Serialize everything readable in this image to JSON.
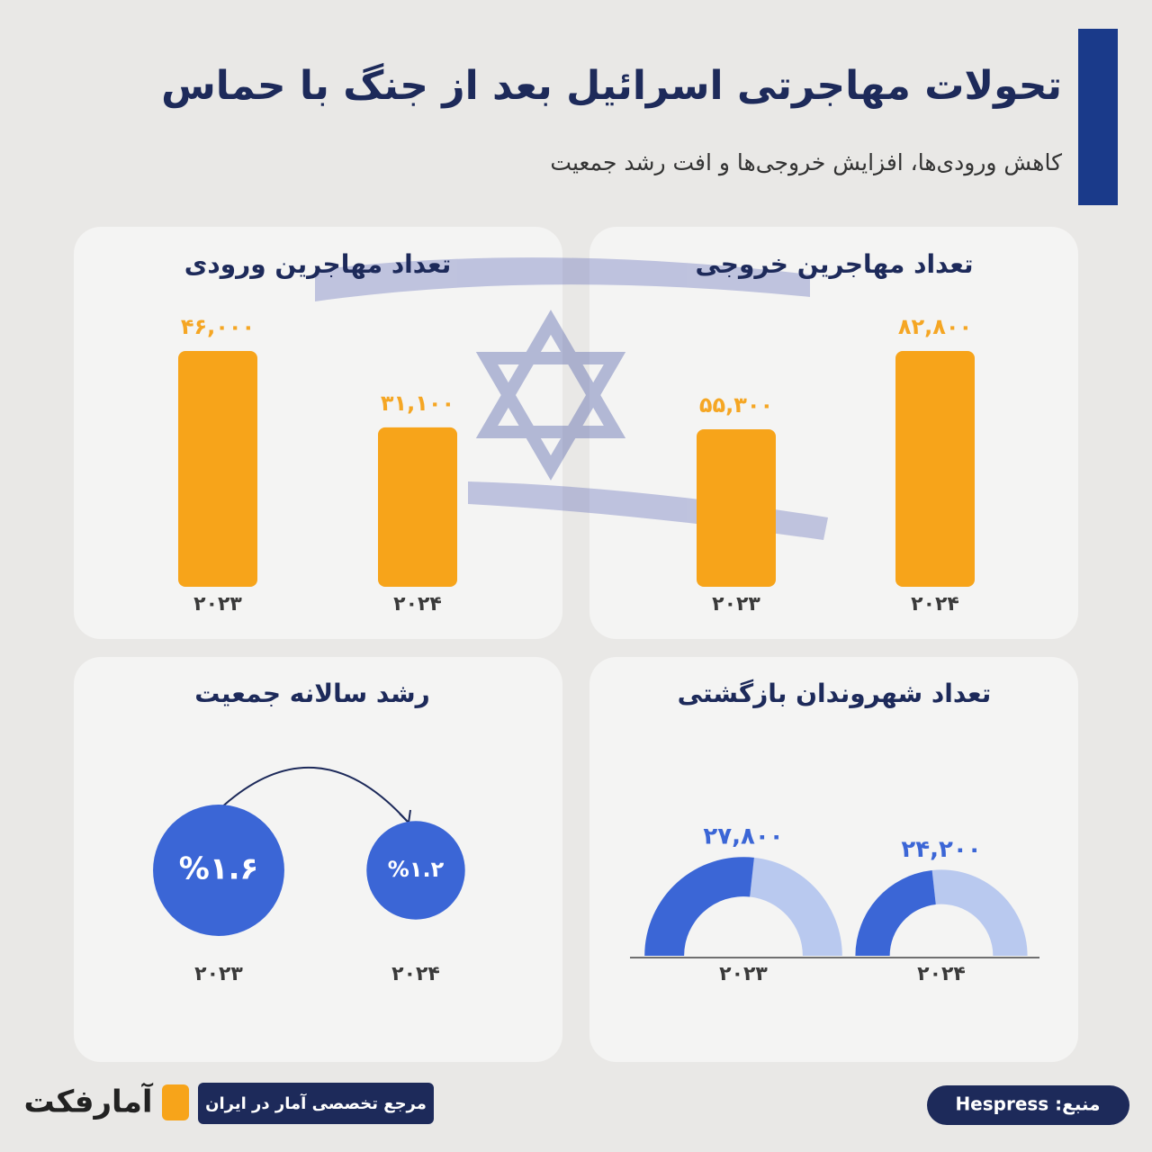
{
  "header": {
    "title": "تحولات مهاجرتی اسرائیل بعد از جنگ با حماس",
    "subtitle": "کاهش ورودی‌ها، افزایش خروجی‌ها و افت رشد جمعیت"
  },
  "chart_data": [
    {
      "type": "bar",
      "title": "تعداد مهاجرین ورودی",
      "categories": [
        "۲۰۲۳",
        "۲۰۲۴"
      ],
      "values": [
        46000,
        31100
      ],
      "value_labels": [
        "۴۶,۰۰۰",
        "۳۱,۱۰۰"
      ],
      "color": "#f7a41a"
    },
    {
      "type": "bar",
      "title": "تعداد مهاجرین خروجی",
      "categories": [
        "۲۰۲۳",
        "۲۰۲۴"
      ],
      "values": [
        55300,
        82800
      ],
      "value_labels": [
        "۵۵,۳۰۰",
        "۸۲,۸۰۰"
      ],
      "color": "#f7a41a"
    },
    {
      "type": "circle",
      "title": "رشد سالانه جمعیت",
      "categories": [
        "۲۰۲۳",
        "۲۰۲۴"
      ],
      "values": [
        1.6,
        1.2
      ],
      "value_labels": [
        "%۱.۶",
        "%۱.۲"
      ],
      "color": "#3b66d6"
    },
    {
      "type": "gauge",
      "title": "تعداد شهروندان بازگشتی",
      "categories": [
        "۲۰۲۳",
        "۲۰۲۴"
      ],
      "values": [
        27800,
        24200
      ],
      "value_labels": [
        "۲۷,۸۰۰",
        "۲۴,۲۰۰"
      ],
      "color": "#3b66d6"
    }
  ],
  "footer": {
    "source": "منبع: Hespress",
    "tagline": "مرجع تخصصی آمار در ایران",
    "logo": "آمارفکت"
  }
}
